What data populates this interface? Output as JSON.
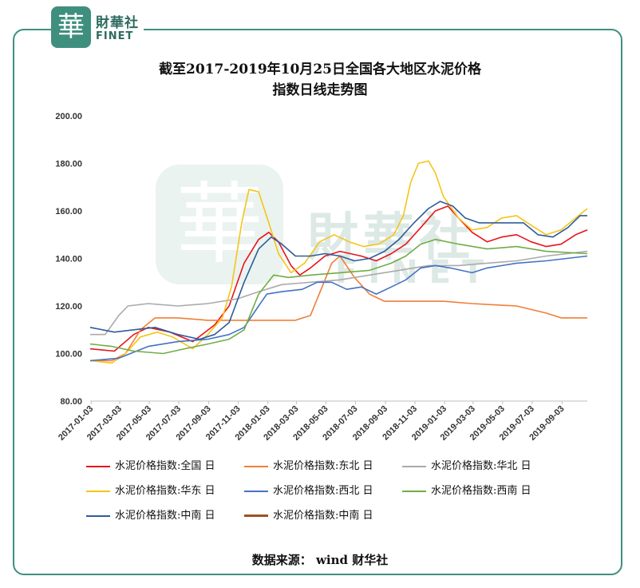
{
  "brand": {
    "logo_char": "華",
    "name_cn": "財華社",
    "name_en": "FINET"
  },
  "title_line1": "截至2017-2019年10月25日全国各大地区水泥价格",
  "title_line2": "指数日线走势图",
  "source": "数据来源： wind   财华社",
  "colors": {
    "frame": "#3f8f7f"
  },
  "chart_data": {
    "type": "line",
    "title": "截至2017-2019年10月25日全国各大地区水泥价格指数日线走势图",
    "xlabel": "",
    "ylabel": "",
    "ylim": [
      80,
      200
    ],
    "yticks": [
      "80.00",
      "100.00",
      "120.00",
      "140.00",
      "160.00",
      "180.00",
      "200.00"
    ],
    "xlim": [
      "2017-01-01",
      "2019-10-25"
    ],
    "xticks": [
      "2017-01-03",
      "2017-03-03",
      "2017-05-03",
      "2017-07-03",
      "2017-09-03",
      "2017-11-03",
      "2018-01-03",
      "2018-03-03",
      "2018-05-03",
      "2018-07-03",
      "2018-09-03",
      "2018-11-03",
      "2019-01-03",
      "2019-03-03",
      "2019-05-03",
      "2019-07-03",
      "2019-09-03"
    ],
    "grid": false,
    "legend_position": "bottom",
    "series": [
      {
        "name": "水泥价格指数:全国 日",
        "color": "#e8141c",
        "points": [
          [
            "2017-01-01",
            102
          ],
          [
            "2017-02-20",
            101
          ],
          [
            "2017-04-01",
            108
          ],
          [
            "2017-05-01",
            111
          ],
          [
            "2017-06-15",
            109
          ],
          [
            "2017-08-01",
            105
          ],
          [
            "2017-09-15",
            112
          ],
          [
            "2017-10-15",
            120
          ],
          [
            "2017-11-15",
            138
          ],
          [
            "2017-12-15",
            148
          ],
          [
            "2018-01-05",
            151
          ],
          [
            "2018-01-25",
            147
          ],
          [
            "2018-02-20",
            137
          ],
          [
            "2018-03-10",
            133
          ],
          [
            "2018-04-01",
            136
          ],
          [
            "2018-05-01",
            141
          ],
          [
            "2018-06-01",
            143
          ],
          [
            "2018-07-15",
            141
          ],
          [
            "2018-08-15",
            139
          ],
          [
            "2018-09-15",
            142
          ],
          [
            "2018-10-15",
            146
          ],
          [
            "2018-11-15",
            153
          ],
          [
            "2018-12-15",
            160
          ],
          [
            "2019-01-10",
            162
          ],
          [
            "2019-02-01",
            157
          ],
          [
            "2019-03-01",
            151
          ],
          [
            "2019-04-01",
            147
          ],
          [
            "2019-05-01",
            149
          ],
          [
            "2019-06-01",
            150
          ],
          [
            "2019-07-01",
            147
          ],
          [
            "2019-08-01",
            145
          ],
          [
            "2019-09-01",
            146
          ],
          [
            "2019-10-01",
            150
          ],
          [
            "2019-10-25",
            152
          ]
        ]
      },
      {
        "name": "水泥价格指数:东北 日",
        "color": "#f07e37",
        "points": [
          [
            "2017-01-01",
            97
          ],
          [
            "2017-02-15",
            97
          ],
          [
            "2017-03-15",
            100
          ],
          [
            "2017-04-15",
            110
          ],
          [
            "2017-05-15",
            115
          ],
          [
            "2017-07-01",
            115
          ],
          [
            "2017-09-01",
            114
          ],
          [
            "2017-11-01",
            114
          ],
          [
            "2018-01-01",
            114
          ],
          [
            "2018-03-01",
            114
          ],
          [
            "2018-04-01",
            116
          ],
          [
            "2018-04-25",
            128
          ],
          [
            "2018-05-15",
            138
          ],
          [
            "2018-06-01",
            141
          ],
          [
            "2018-07-01",
            132
          ],
          [
            "2018-08-01",
            125
          ],
          [
            "2018-09-01",
            122
          ],
          [
            "2018-11-01",
            122
          ],
          [
            "2019-01-01",
            122
          ],
          [
            "2019-03-01",
            121
          ],
          [
            "2019-06-01",
            120
          ],
          [
            "2019-08-01",
            117
          ],
          [
            "2019-09-01",
            115
          ],
          [
            "2019-10-25",
            115
          ]
        ]
      },
      {
        "name": "水泥价格指数:华北 日",
        "color": "#aaaaaa",
        "points": [
          [
            "2017-01-01",
            108
          ],
          [
            "2017-02-01",
            108
          ],
          [
            "2017-03-01",
            116
          ],
          [
            "2017-03-20",
            120
          ],
          [
            "2017-05-01",
            121
          ],
          [
            "2017-07-01",
            120
          ],
          [
            "2017-09-01",
            121
          ],
          [
            "2017-11-01",
            123
          ],
          [
            "2017-12-15",
            126
          ],
          [
            "2018-02-01",
            129
          ],
          [
            "2018-04-01",
            130
          ],
          [
            "2018-06-01",
            131
          ],
          [
            "2018-08-01",
            133
          ],
          [
            "2018-10-01",
            135
          ],
          [
            "2018-12-01",
            137
          ],
          [
            "2019-02-01",
            137
          ],
          [
            "2019-04-01",
            138
          ],
          [
            "2019-06-01",
            139
          ],
          [
            "2019-08-01",
            141
          ],
          [
            "2019-10-25",
            143
          ]
        ]
      },
      {
        "name": "水泥价格指数:华东 日",
        "color": "#f5c518",
        "points": [
          [
            "2017-01-01",
            97
          ],
          [
            "2017-02-15",
            96
          ],
          [
            "2017-03-15",
            100
          ],
          [
            "2017-04-15",
            107
          ],
          [
            "2017-05-20",
            109
          ],
          [
            "2017-06-20",
            107
          ],
          [
            "2017-08-01",
            102
          ],
          [
            "2017-09-01",
            108
          ],
          [
            "2017-10-01",
            115
          ],
          [
            "2017-10-20",
            128
          ],
          [
            "2017-11-10",
            155
          ],
          [
            "2017-11-25",
            169
          ],
          [
            "2017-12-15",
            168
          ],
          [
            "2018-01-05",
            155
          ],
          [
            "2018-01-25",
            142
          ],
          [
            "2018-02-20",
            134
          ],
          [
            "2018-03-20",
            138
          ],
          [
            "2018-04-20",
            147
          ],
          [
            "2018-05-20",
            150
          ],
          [
            "2018-06-20",
            147
          ],
          [
            "2018-07-20",
            145
          ],
          [
            "2018-08-20",
            146
          ],
          [
            "2018-09-20",
            150
          ],
          [
            "2018-10-10",
            158
          ],
          [
            "2018-10-25",
            172
          ],
          [
            "2018-11-10",
            180
          ],
          [
            "2018-12-01",
            181
          ],
          [
            "2018-12-15",
            176
          ],
          [
            "2019-01-01",
            166
          ],
          [
            "2019-02-01",
            157
          ],
          [
            "2019-03-01",
            152
          ],
          [
            "2019-04-01",
            153
          ],
          [
            "2019-05-01",
            157
          ],
          [
            "2019-06-01",
            158
          ],
          [
            "2019-07-01",
            154
          ],
          [
            "2019-08-01",
            150
          ],
          [
            "2019-09-01",
            152
          ],
          [
            "2019-10-01",
            157
          ],
          [
            "2019-10-25",
            161
          ]
        ]
      },
      {
        "name": "水泥价格指数:西北 日",
        "color": "#4472c4",
        "points": [
          [
            "2017-01-01",
            97
          ],
          [
            "2017-03-01",
            98
          ],
          [
            "2017-05-01",
            103
          ],
          [
            "2017-07-01",
            105
          ],
          [
            "2017-09-01",
            106
          ],
          [
            "2017-10-15",
            108
          ],
          [
            "2017-11-15",
            111
          ],
          [
            "2017-12-15",
            120
          ],
          [
            "2018-01-01",
            125
          ],
          [
            "2018-02-01",
            126
          ],
          [
            "2018-03-15",
            127
          ],
          [
            "2018-04-15",
            130
          ],
          [
            "2018-05-15",
            130
          ],
          [
            "2018-06-15",
            127
          ],
          [
            "2018-07-15",
            128
          ],
          [
            "2018-08-15",
            125
          ],
          [
            "2018-09-15",
            128
          ],
          [
            "2018-10-15",
            131
          ],
          [
            "2018-11-15",
            136
          ],
          [
            "2018-12-15",
            137
          ],
          [
            "2019-01-15",
            136
          ],
          [
            "2019-03-01",
            134
          ],
          [
            "2019-04-01",
            136
          ],
          [
            "2019-06-01",
            138
          ],
          [
            "2019-08-01",
            139
          ],
          [
            "2019-10-25",
            141
          ]
        ]
      },
      {
        "name": "水泥价格指数:西南 日",
        "color": "#70ad47",
        "points": [
          [
            "2017-01-01",
            104
          ],
          [
            "2017-02-15",
            103
          ],
          [
            "2017-04-01",
            101
          ],
          [
            "2017-06-01",
            100
          ],
          [
            "2017-07-15",
            102
          ],
          [
            "2017-09-01",
            104
          ],
          [
            "2017-10-15",
            106
          ],
          [
            "2017-11-15",
            110
          ],
          [
            "2017-12-15",
            125
          ],
          [
            "2018-01-15",
            133
          ],
          [
            "2018-02-15",
            132
          ],
          [
            "2018-04-01",
            133
          ],
          [
            "2018-06-01",
            134
          ],
          [
            "2018-08-01",
            135
          ],
          [
            "2018-09-15",
            138
          ],
          [
            "2018-10-15",
            141
          ],
          [
            "2018-11-15",
            146
          ],
          [
            "2018-12-15",
            148
          ],
          [
            "2019-02-01",
            146
          ],
          [
            "2019-04-01",
            144
          ],
          [
            "2019-06-01",
            145
          ],
          [
            "2019-08-01",
            143
          ],
          [
            "2019-10-25",
            142
          ]
        ]
      },
      {
        "name": "水泥价格指数:中南 日",
        "color": "#2e5c9a",
        "points": [
          [
            "2017-01-01",
            111
          ],
          [
            "2017-02-20",
            109
          ],
          [
            "2017-04-01",
            110
          ],
          [
            "2017-05-15",
            111
          ],
          [
            "2017-07-01",
            108
          ],
          [
            "2017-08-15",
            106
          ],
          [
            "2017-09-15",
            108
          ],
          [
            "2017-10-15",
            113
          ],
          [
            "2017-11-15",
            130
          ],
          [
            "2017-12-15",
            144
          ],
          [
            "2018-01-10",
            149
          ],
          [
            "2018-02-01",
            146
          ],
          [
            "2018-03-01",
            141
          ],
          [
            "2018-04-01",
            141
          ],
          [
            "2018-05-01",
            142
          ],
          [
            "2018-06-01",
            141
          ],
          [
            "2018-07-01",
            139
          ],
          [
            "2018-08-01",
            140
          ],
          [
            "2018-09-01",
            143
          ],
          [
            "2018-10-01",
            148
          ],
          [
            "2018-11-01",
            155
          ],
          [
            "2018-12-01",
            161
          ],
          [
            "2018-12-25",
            164
          ],
          [
            "2019-01-20",
            162
          ],
          [
            "2019-02-15",
            157
          ],
          [
            "2019-03-15",
            155
          ],
          [
            "2019-05-01",
            155
          ],
          [
            "2019-06-15",
            155
          ],
          [
            "2019-07-15",
            150
          ],
          [
            "2019-08-15",
            149
          ],
          [
            "2019-09-15",
            153
          ],
          [
            "2019-10-10",
            158
          ],
          [
            "2019-10-25",
            158
          ]
        ]
      },
      {
        "name": "水泥价格指数:中南 日",
        "color": "#a0501e",
        "legend_only": true,
        "points": []
      }
    ]
  }
}
